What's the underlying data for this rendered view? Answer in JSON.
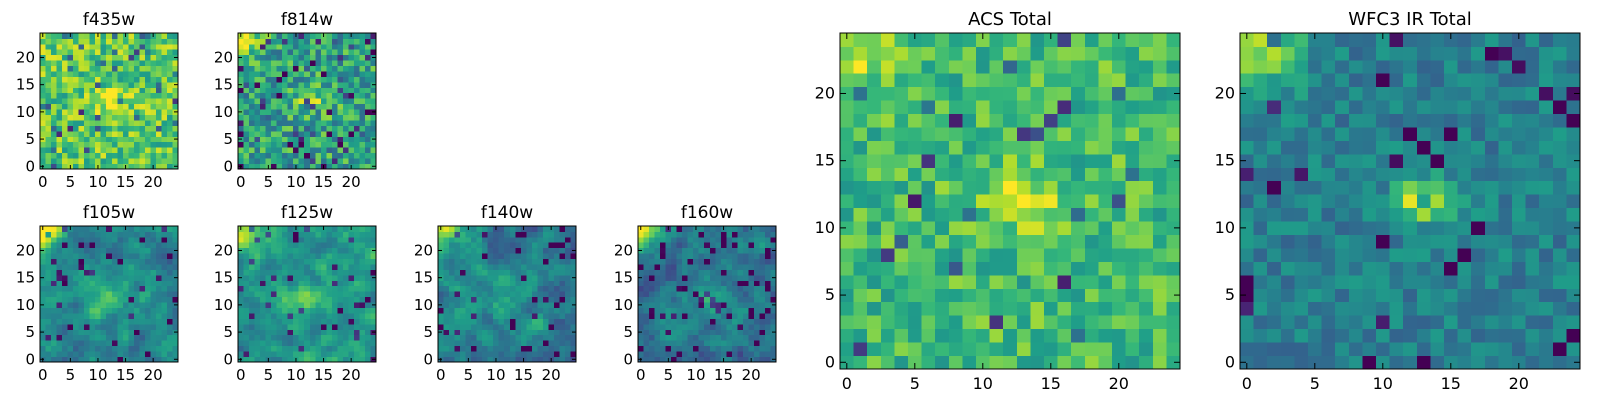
{
  "chart_data": [
    {
      "type": "heatmap",
      "title": "f435w",
      "xticks": [
        "0",
        "5",
        "10",
        "15",
        "20"
      ],
      "yticks": [
        "0",
        "5",
        "10",
        "15",
        "20"
      ],
      "grid_shape": [
        25,
        25
      ],
      "xlim": [
        0,
        25
      ],
      "ylim": [
        0,
        25
      ],
      "colormap": "viridis",
      "feature": "compact bright source near (13, 12)"
    },
    {
      "type": "heatmap",
      "title": "f814w",
      "xticks": [
        "0",
        "5",
        "10",
        "15",
        "20"
      ],
      "yticks": [
        "0",
        "5",
        "10",
        "15",
        "20"
      ],
      "grid_shape": [
        25,
        25
      ],
      "xlim": [
        0,
        25
      ],
      "ylim": [
        0,
        25
      ],
      "colormap": "viridis",
      "feature": "compact source near (13, 12), bright top-left corner"
    },
    {
      "type": "heatmap",
      "title": "f105w",
      "xticks": [
        "0",
        "5",
        "10",
        "15",
        "20"
      ],
      "yticks": [
        "0",
        "5",
        "10",
        "15",
        "20"
      ],
      "grid_shape": [
        25,
        25
      ],
      "xlim": [
        0,
        25
      ],
      "ylim": [
        0,
        25
      ],
      "colormap": "viridis",
      "feature": "diffuse source near (12, 11), bright top-left corner"
    },
    {
      "type": "heatmap",
      "title": "f125w",
      "xticks": [
        "0",
        "5",
        "10",
        "15",
        "20"
      ],
      "yticks": [
        "0",
        "5",
        "10",
        "15",
        "20"
      ],
      "grid_shape": [
        25,
        25
      ],
      "xlim": [
        0,
        25
      ],
      "ylim": [
        0,
        25
      ],
      "colormap": "viridis",
      "feature": "diffuse source near (12, 11), bright top-left corner"
    },
    {
      "type": "heatmap",
      "title": "f140w",
      "xticks": [
        "0",
        "5",
        "10",
        "15",
        "20"
      ],
      "yticks": [
        "0",
        "5",
        "10",
        "15",
        "20"
      ],
      "grid_shape": [
        25,
        25
      ],
      "xlim": [
        0,
        25
      ],
      "ylim": [
        0,
        25
      ],
      "colormap": "viridis",
      "feature": "faint source, bright top-left corner"
    },
    {
      "type": "heatmap",
      "title": "f160w",
      "xticks": [
        "0",
        "5",
        "10",
        "15",
        "20"
      ],
      "yticks": [
        "0",
        "5",
        "10",
        "15",
        "20"
      ],
      "grid_shape": [
        25,
        25
      ],
      "xlim": [
        0,
        25
      ],
      "ylim": [
        0,
        25
      ],
      "colormap": "viridis",
      "feature": "faint source, bright top-left corner"
    },
    {
      "type": "heatmap",
      "title": "ACS Total",
      "xticks": [
        "0",
        "5",
        "10",
        "15",
        "20"
      ],
      "yticks": [
        "0",
        "5",
        "10",
        "15",
        "20"
      ],
      "grid_shape": [
        25,
        25
      ],
      "xlim": [
        0,
        25
      ],
      "ylim": [
        0,
        25
      ],
      "colormap": "viridis",
      "feature": "bright horizontal blob near (13, 12)"
    },
    {
      "type": "heatmap",
      "title": "WFC3 IR Total",
      "xticks": [
        "0",
        "5",
        "10",
        "15",
        "20"
      ],
      "yticks": [
        "0",
        "5",
        "10",
        "15",
        "20"
      ],
      "grid_shape": [
        25,
        25
      ],
      "xlim": [
        0,
        25
      ],
      "ylim": [
        0,
        25
      ],
      "colormap": "viridis",
      "feature": "bright compact blob near (13, 12), bright top-left corner"
    }
  ]
}
